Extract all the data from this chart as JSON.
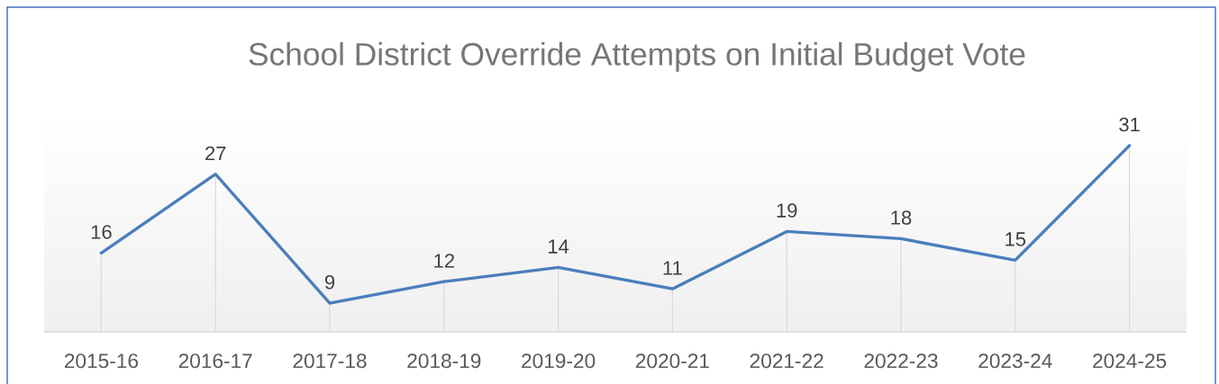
{
  "chart_data": {
    "type": "line",
    "title": "School District Override Attempts on Initial Budget Vote",
    "categories": [
      "2015-16",
      "2016-17",
      "2017-18",
      "2018-19",
      "2019-20",
      "2020-21",
      "2021-22",
      "2022-23",
      "2023-24",
      "2024-25"
    ],
    "values": [
      16,
      27,
      9,
      12,
      14,
      11,
      19,
      18,
      15,
      31
    ],
    "color": "#4a7ebb",
    "ylim": [
      5,
      35
    ],
    "data_labels": true,
    "line_style": "solid",
    "marker": "none",
    "tick_labels": "x"
  }
}
